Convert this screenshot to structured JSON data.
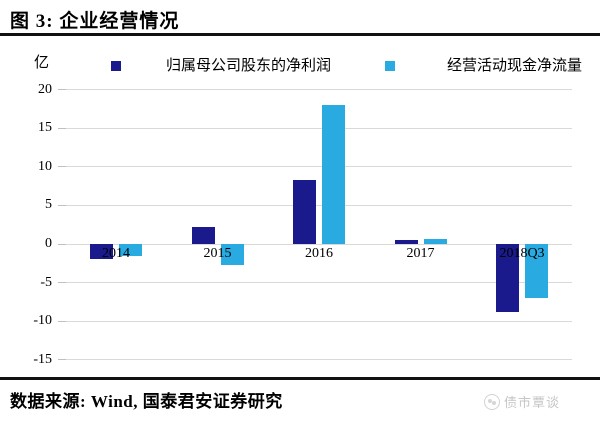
{
  "title": "图 3: 企业经营情况",
  "y_unit": "亿",
  "legend": [
    {
      "label": "归属母公司股东的净利润",
      "color": "#1A1A8C"
    },
    {
      "label": "经营活动现金净流量",
      "color": "#29ABE2"
    }
  ],
  "source": "数据来源: Wind, 国泰君安证券研究",
  "watermark": "债市覃谈",
  "colors": {
    "series1": "#1A1A8C",
    "series2": "#29ABE2",
    "gridline": "#D9D9D9",
    "rule": "#111111",
    "watermark": "#C6C6C6"
  },
  "chart_data": {
    "type": "bar",
    "title": "企业经营情况",
    "categories": [
      "2014",
      "2015",
      "2016",
      "2017",
      "2018Q3"
    ],
    "series": [
      {
        "name": "归属母公司股东的净利润",
        "color": "#1A1A8C",
        "values": [
          -1.9,
          2.2,
          8.3,
          0.5,
          -8.8
        ]
      },
      {
        "name": "经营活动现金净流量",
        "color": "#29ABE2",
        "values": [
          -1.5,
          -2.7,
          18.0,
          0.7,
          -7.0
        ]
      }
    ],
    "xlabel": "",
    "ylabel": "亿",
    "ylim": [
      -15,
      20
    ],
    "yticks": [
      20,
      15,
      10,
      5,
      0,
      -5,
      -10,
      -15
    ],
    "grid": true,
    "legend_position": "top"
  }
}
